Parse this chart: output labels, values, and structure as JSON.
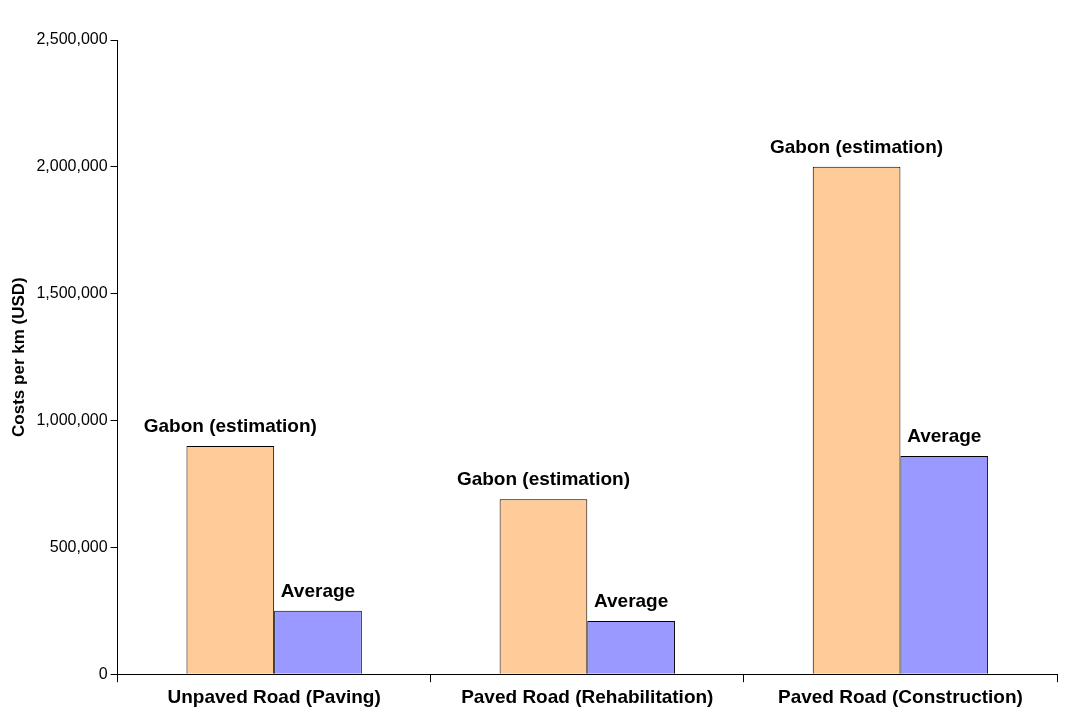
{
  "chart_data": {
    "type": "bar",
    "ylabel": "Costs per km (USD)",
    "categories": [
      "Unpaved Road (Paving)",
      "Paved Road (Rehabilitation)",
      "Paved Road (Construction)"
    ],
    "series": [
      {
        "name": "Gabon (estimation)",
        "color": "#ffcc99",
        "values": [
          900000,
          690000,
          2000000
        ]
      },
      {
        "name": "Average",
        "color": "#9999ff",
        "values": [
          250000,
          210000,
          860000
        ]
      }
    ],
    "ylim": [
      0,
      2500000
    ],
    "yticks": [
      {
        "value": 0,
        "label": "0"
      },
      {
        "value": 500000,
        "label": "500,000"
      },
      {
        "value": 1000000,
        "label": "1,000,000"
      },
      {
        "value": 1500000,
        "label": "1,500,000"
      },
      {
        "value": 2000000,
        "label": "2,000,000"
      },
      {
        "value": 2500000,
        "label": "2,500,000"
      }
    ],
    "grid": false,
    "legend": false
  }
}
